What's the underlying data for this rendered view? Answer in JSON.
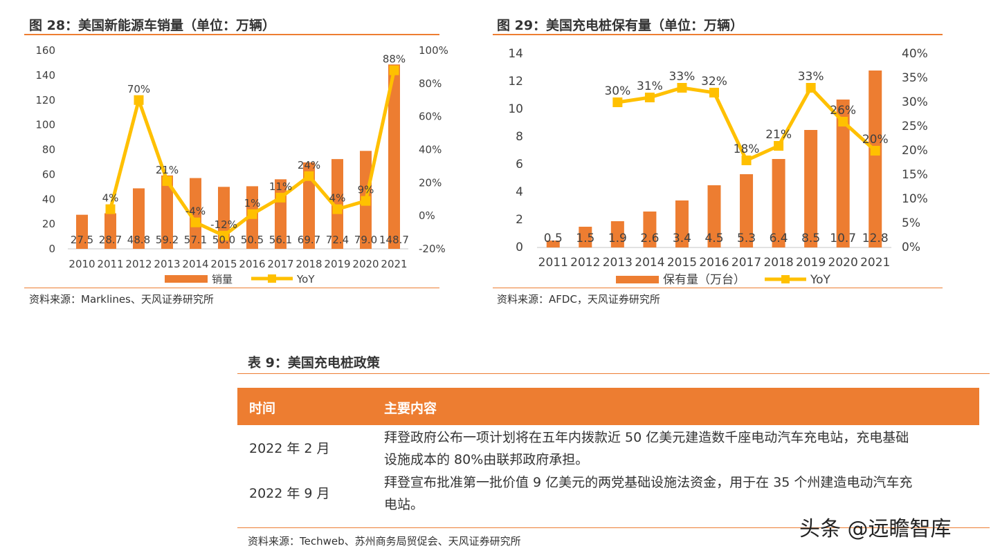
{
  "chart_data": [
    {
      "type": "bar+line",
      "title": "图 28：美国新能源车销量（单位：万辆）",
      "categories": [
        "2010",
        "2011",
        "2012",
        "2013",
        "2014",
        "2015",
        "2016",
        "2017",
        "2018",
        "2019",
        "2020",
        "2021"
      ],
      "series": [
        {
          "name": "销量",
          "type": "bar",
          "axis": "left",
          "values": [
            27.5,
            28.7,
            48.8,
            59.2,
            57.1,
            50.0,
            50.5,
            56.1,
            69.7,
            72.4,
            79.0,
            148.7
          ],
          "labels": [
            "27.5",
            "28.7",
            "48.8",
            "59.2",
            "57.1",
            "50.0",
            "50.5",
            "56.1",
            "69.7",
            "72.4",
            "79.0",
            "148.7"
          ]
        },
        {
          "name": "YoY",
          "type": "line",
          "axis": "right",
          "values": [
            null,
            4,
            70,
            21,
            -4,
            -12,
            1,
            11,
            24,
            4,
            9,
            88
          ],
          "labels": [
            "",
            "4%",
            "70%",
            "21%",
            "-4%",
            "-12%",
            "1%",
            "11%",
            "24%",
            "4%",
            "9%",
            "88%"
          ]
        }
      ],
      "ylim": [
        0,
        160
      ],
      "yticks": [
        "0",
        "20",
        "40",
        "60",
        "80",
        "100",
        "120",
        "140",
        "160"
      ],
      "y2lim": [
        -20,
        100
      ],
      "y2ticks": [
        "-20%",
        "0%",
        "20%",
        "40%",
        "60%",
        "80%",
        "100%"
      ],
      "legend": "bottom",
      "grid": false,
      "source": "资料来源：Marklines、天风证券研究所"
    },
    {
      "type": "bar+line",
      "title": "图 29：美国充电桩保有量（单位：万辆）",
      "categories": [
        "2011",
        "2012",
        "2013",
        "2014",
        "2015",
        "2016",
        "2017",
        "2018",
        "2019",
        "2020",
        "2021"
      ],
      "series": [
        {
          "name": "保有量（万台）",
          "type": "bar",
          "axis": "left",
          "values": [
            0.5,
            1.5,
            1.9,
            2.6,
            3.4,
            4.5,
            5.3,
            6.4,
            8.5,
            10.7,
            12.8
          ],
          "labels": [
            "0.5",
            "1.5",
            "1.9",
            "2.6",
            "3.4",
            "4.5",
            "5.3",
            "6.4",
            "8.5",
            "10.7",
            "12.8"
          ]
        },
        {
          "name": "YoY",
          "type": "line",
          "axis": "right",
          "values": [
            null,
            null,
            30,
            31,
            33,
            32,
            18,
            21,
            33,
            26,
            20
          ],
          "labels": [
            "",
            "",
            "30%",
            "31%",
            "33%",
            "32%",
            "18%",
            "21%",
            "33%",
            "26%",
            "20%"
          ]
        }
      ],
      "ylim": [
        0,
        14
      ],
      "yticks": [
        "0",
        "2",
        "4",
        "6",
        "8",
        "10",
        "12",
        "14"
      ],
      "y2lim": [
        0,
        40
      ],
      "y2ticks": [
        "0%",
        "5%",
        "10%",
        "15%",
        "20%",
        "25%",
        "30%",
        "35%",
        "40%"
      ],
      "legend": "bottom",
      "grid": false,
      "source": "资料来源：AFDC，天风证券研究所"
    }
  ],
  "colors": {
    "bar": "#ed7d31",
    "line": "#ffc000",
    "accent": "#ed7d31"
  },
  "table": {
    "title": "表 9：美国充电桩政策",
    "headers": [
      "时间",
      "主要内容"
    ],
    "rows": [
      {
        "date": "2022 年 2 月",
        "lines": [
          "拜登政府公布一项计划将在五年内拨款近 50 亿美元建造数千座电动汽车充电站，充电基础",
          "设施成本的 80%由联邦政府承担。"
        ]
      },
      {
        "date": "2022 年 9 月",
        "lines": [
          "拜登宣布批准第一批价值 9 亿美元的两党基础设施法资金，用于在 35 个州建造电动汽车充",
          "电站。"
        ]
      }
    ],
    "source": "资料来源：Techweb、苏州商务局贸促会、天风证券研究所"
  },
  "watermark": "头条 @远瞻智库"
}
